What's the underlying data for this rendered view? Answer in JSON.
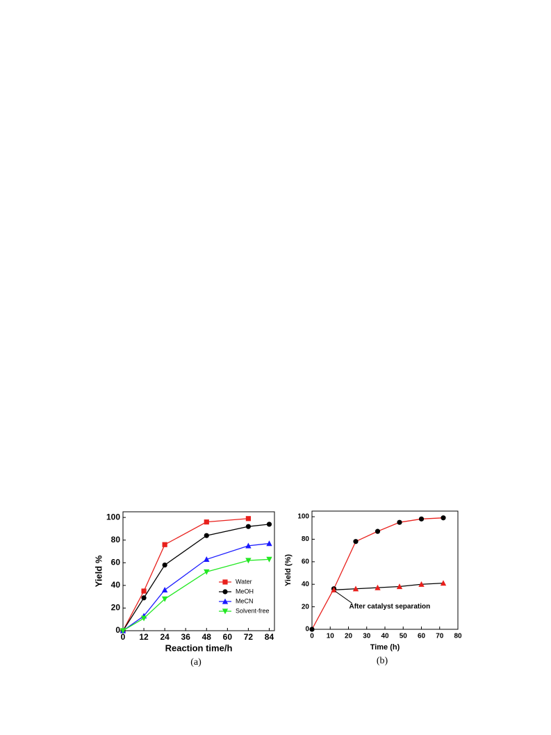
{
  "chart_data": [
    {
      "type": "line",
      "xlabel": "Reaction time/h",
      "ylabel": "Yield %",
      "caption": "(a)",
      "xlim": [
        0,
        87
      ],
      "ylim": [
        0,
        105
      ],
      "xticks": [
        0,
        12,
        24,
        36,
        48,
        60,
        72,
        84
      ],
      "yticks": [
        0,
        20,
        40,
        60,
        80,
        100
      ],
      "legend": "lower right",
      "series": [
        {
          "name": "Water",
          "color": "#e8201c",
          "marker": "square",
          "x": [
            0,
            12,
            24,
            48,
            72
          ],
          "values": [
            0,
            35,
            76,
            96,
            99
          ]
        },
        {
          "name": "MeOH",
          "color": "#000000",
          "marker": "circle",
          "x": [
            0,
            12,
            24,
            48,
            72,
            84
          ],
          "values": [
            0,
            29,
            58,
            84,
            92,
            94
          ]
        },
        {
          "name": "MeCN",
          "color": "#1a1aff",
          "marker": "triangle-up",
          "x": [
            0,
            12,
            24,
            48,
            72,
            84
          ],
          "values": [
            0,
            13,
            36,
            63,
            75,
            77
          ]
        },
        {
          "name": "Solvent-free",
          "color": "#22e822",
          "marker": "triangle-down",
          "x": [
            0,
            12,
            24,
            48,
            72,
            84
          ],
          "values": [
            0,
            11,
            28,
            52,
            62,
            63
          ]
        }
      ]
    },
    {
      "type": "line",
      "xlabel": "Time (h)",
      "ylabel": "Yield (%)",
      "caption": "(b)",
      "xlim": [
        0,
        80
      ],
      "ylim": [
        0,
        105
      ],
      "xticks": [
        0,
        10,
        20,
        30,
        40,
        50,
        60,
        70,
        80
      ],
      "yticks": [
        0,
        20,
        40,
        60,
        80,
        100
      ],
      "annotation": {
        "text": "After catalyst separation",
        "x": 12,
        "y": 35
      },
      "series": [
        {
          "color": "#e8201c",
          "marker_color": "#000000",
          "marker": "circle",
          "x": [
            0,
            12,
            24,
            36,
            48,
            60,
            72
          ],
          "values": [
            0,
            36,
            78,
            87,
            95,
            98,
            99
          ]
        },
        {
          "color": "#000000",
          "marker_color": "#e8201c",
          "marker": "triangle-up",
          "x": [
            12,
            24,
            36,
            48,
            60,
            72
          ],
          "values": [
            35,
            36,
            37,
            38,
            40,
            41
          ]
        }
      ]
    }
  ]
}
